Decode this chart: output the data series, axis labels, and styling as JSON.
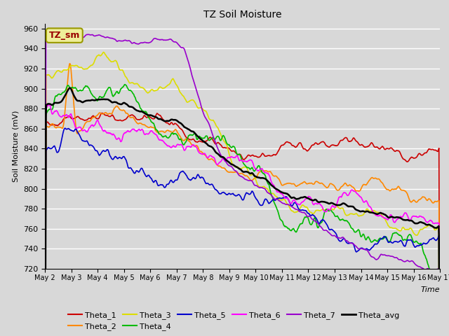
{
  "title": "TZ Soil Moisture",
  "ylabel": "Soil Moisture (mV)",
  "xlabel": "Time",
  "ylim": [
    720,
    965
  ],
  "yticks": [
    720,
    740,
    760,
    780,
    800,
    820,
    840,
    860,
    880,
    900,
    920,
    940,
    960
  ],
  "bg_color": "#d8d8d8",
  "plot_bg_color": "#d8d8d8",
  "grid_color": "#ffffff",
  "series": {
    "Theta_1": {
      "color": "#cc0000",
      "lw": 1.2
    },
    "Theta_2": {
      "color": "#ff8800",
      "lw": 1.2
    },
    "Theta_3": {
      "color": "#dddd00",
      "lw": 1.2
    },
    "Theta_4": {
      "color": "#00bb00",
      "lw": 1.2
    },
    "Theta_5": {
      "color": "#0000cc",
      "lw": 1.2
    },
    "Theta_6": {
      "color": "#ff00ff",
      "lw": 1.2
    },
    "Theta_7": {
      "color": "#9900cc",
      "lw": 1.2
    },
    "Theta_avg": {
      "color": "#000000",
      "lw": 1.8
    }
  },
  "xtick_days": [
    2,
    3,
    4,
    5,
    6,
    7,
    8,
    9,
    10,
    11,
    12,
    13,
    14,
    15,
    16,
    17
  ],
  "legend_label": "TZ_sm",
  "legend_box_color": "#eeee99",
  "legend_box_edge": "#999900",
  "legend_text_color": "#990000"
}
